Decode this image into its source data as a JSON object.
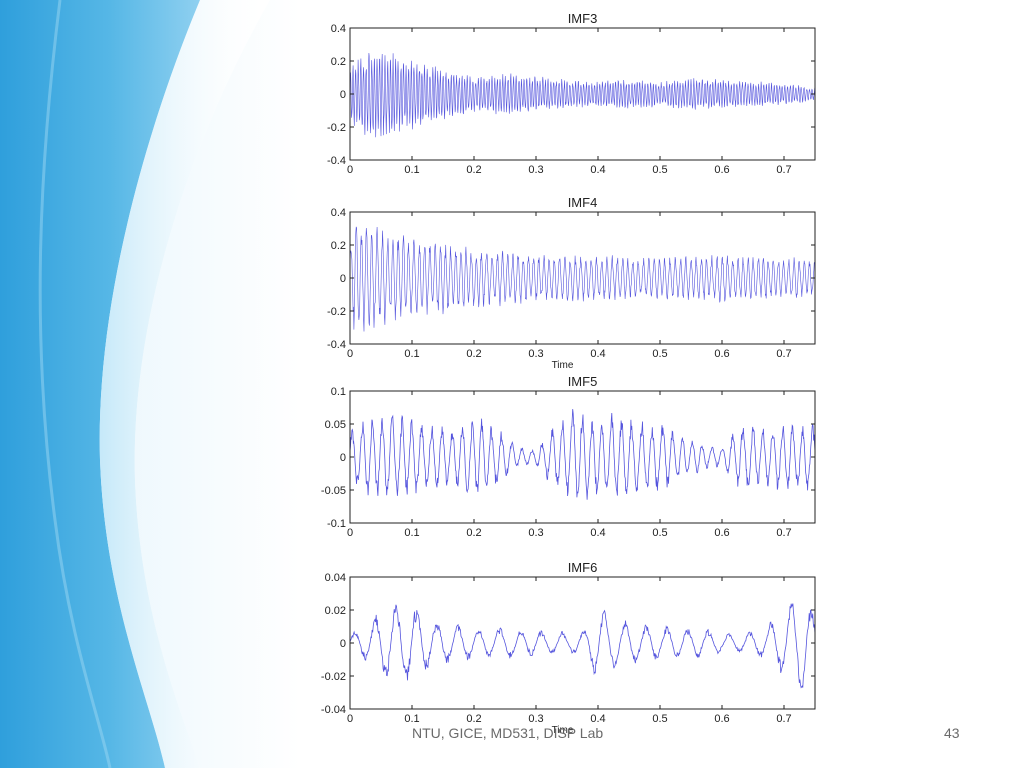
{
  "footer": {
    "left_text": "NTU, GICE, MD531, DISP Lab",
    "page_number": "43"
  },
  "colors": {
    "signal": "#5555dd",
    "axis": "#222222",
    "background_blue": "#3aa6dd"
  },
  "chart_data": [
    {
      "type": "line",
      "title": "IMF3",
      "xlabel": "",
      "ylabel": "",
      "xlim": [
        0,
        0.75
      ],
      "ylim": [
        -0.4,
        0.4
      ],
      "xticks": [
        "0",
        "0.1",
        "0.2",
        "0.3",
        "0.4",
        "0.5",
        "0.6",
        "0.7"
      ],
      "yticks": [
        "-0.4",
        "-0.2",
        "0",
        "0.2",
        "0.4"
      ],
      "grid": false,
      "signal": {
        "frequency_hz": 230,
        "amplitude_range": [
          -0.3,
          0.3
        ],
        "samples": 1500
      },
      "envelope": [
        [
          0,
          0.18
        ],
        [
          0.02,
          0.26
        ],
        [
          0.05,
          0.27
        ],
        [
          0.1,
          0.22
        ],
        [
          0.15,
          0.16
        ],
        [
          0.2,
          0.11
        ],
        [
          0.25,
          0.13
        ],
        [
          0.3,
          0.11
        ],
        [
          0.35,
          0.09
        ],
        [
          0.4,
          0.08
        ],
        [
          0.45,
          0.09
        ],
        [
          0.5,
          0.08
        ],
        [
          0.55,
          0.1
        ],
        [
          0.6,
          0.09
        ],
        [
          0.65,
          0.08
        ],
        [
          0.7,
          0.07
        ],
        [
          0.75,
          0.04
        ]
      ]
    },
    {
      "type": "line",
      "title": "IMF4",
      "xlabel": "Time",
      "ylabel": "",
      "xlim": [
        0,
        0.75
      ],
      "ylim": [
        -0.4,
        0.4
      ],
      "xticks": [
        "0",
        "0.1",
        "0.2",
        "0.3",
        "0.4",
        "0.5",
        "0.6",
        "0.7"
      ],
      "yticks": [
        "-0.4",
        "-0.2",
        "0",
        "0.2",
        "0.4"
      ],
      "grid": false,
      "signal": {
        "frequency_hz": 120,
        "amplitude_range": [
          -0.36,
          0.38
        ],
        "samples": 1200
      },
      "envelope": [
        [
          0,
          0.25
        ],
        [
          0.01,
          0.36
        ],
        [
          0.03,
          0.33
        ],
        [
          0.06,
          0.29
        ],
        [
          0.1,
          0.25
        ],
        [
          0.15,
          0.22
        ],
        [
          0.2,
          0.18
        ],
        [
          0.25,
          0.17
        ],
        [
          0.3,
          0.16
        ],
        [
          0.35,
          0.15
        ],
        [
          0.4,
          0.15
        ],
        [
          0.45,
          0.13
        ],
        [
          0.5,
          0.13
        ],
        [
          0.55,
          0.14
        ],
        [
          0.6,
          0.15
        ],
        [
          0.65,
          0.14
        ],
        [
          0.7,
          0.13
        ],
        [
          0.75,
          0.12
        ]
      ]
    },
    {
      "type": "line",
      "title": "IMF5",
      "xlabel": "",
      "ylabel": "",
      "xlim": [
        0,
        0.75
      ],
      "ylim": [
        -0.1,
        0.1
      ],
      "xticks": [
        "0",
        "0.1",
        "0.2",
        "0.3",
        "0.4",
        "0.5",
        "0.6",
        "0.7"
      ],
      "yticks": [
        "-0.1",
        "-0.05",
        "0",
        "0.05",
        "0.1"
      ],
      "grid": false,
      "signal": {
        "frequency_hz": 62,
        "amplitude_range": [
          -0.08,
          0.085
        ],
        "samples": 1000
      },
      "envelope": [
        [
          0,
          0.04
        ],
        [
          0.03,
          0.065
        ],
        [
          0.07,
          0.07
        ],
        [
          0.1,
          0.06
        ],
        [
          0.13,
          0.055
        ],
        [
          0.16,
          0.045
        ],
        [
          0.2,
          0.065
        ],
        [
          0.24,
          0.045
        ],
        [
          0.27,
          0.015
        ],
        [
          0.3,
          0.012
        ],
        [
          0.33,
          0.05
        ],
        [
          0.36,
          0.08
        ],
        [
          0.39,
          0.065
        ],
        [
          0.42,
          0.07
        ],
        [
          0.46,
          0.06
        ],
        [
          0.5,
          0.055
        ],
        [
          0.53,
          0.04
        ],
        [
          0.57,
          0.02
        ],
        [
          0.6,
          0.015
        ],
        [
          0.63,
          0.055
        ],
        [
          0.66,
          0.05
        ],
        [
          0.7,
          0.055
        ],
        [
          0.75,
          0.05
        ]
      ]
    },
    {
      "type": "line",
      "title": "IMF6",
      "xlabel": "Time",
      "ylabel": "",
      "xlim": [
        0,
        0.75
      ],
      "ylim": [
        -0.04,
        0.04
      ],
      "xticks": [
        "0",
        "0.1",
        "0.2",
        "0.3",
        "0.4",
        "0.5",
        "0.6",
        "0.7"
      ],
      "yticks": [
        "-0.04",
        "-0.02",
        "0",
        "0.02",
        "0.04"
      ],
      "grid": false,
      "signal": {
        "frequency_hz": 30,
        "amplitude_range": [
          -0.027,
          0.036
        ],
        "samples": 800
      },
      "envelope": [
        [
          0,
          0.006
        ],
        [
          0.03,
          0.012
        ],
        [
          0.06,
          0.026
        ],
        [
          0.1,
          0.026
        ],
        [
          0.13,
          0.015
        ],
        [
          0.17,
          0.012
        ],
        [
          0.2,
          0.01
        ],
        [
          0.25,
          0.01
        ],
        [
          0.3,
          0.008
        ],
        [
          0.35,
          0.007
        ],
        [
          0.38,
          0.008
        ],
        [
          0.4,
          0.024
        ],
        [
          0.43,
          0.015
        ],
        [
          0.47,
          0.012
        ],
        [
          0.52,
          0.01
        ],
        [
          0.57,
          0.009
        ],
        [
          0.6,
          0.006
        ],
        [
          0.63,
          0.006
        ],
        [
          0.67,
          0.01
        ],
        [
          0.7,
          0.02
        ],
        [
          0.73,
          0.036
        ],
        [
          0.75,
          0.02
        ]
      ]
    }
  ]
}
